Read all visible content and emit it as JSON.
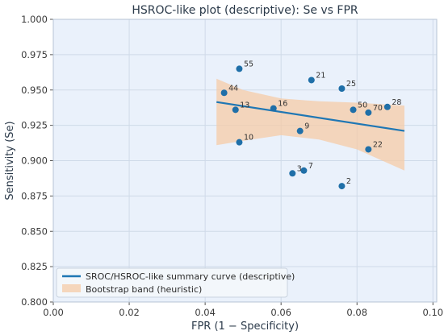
{
  "chart_data": {
    "type": "scatter",
    "title": "HSROC-like plot (descriptive): Se vs FPR",
    "xlabel": "FPR (1 − Specificity)",
    "ylabel": "Sensitivity (Se)",
    "xlim": [
      0.0,
      0.101
    ],
    "ylim": [
      0.8,
      1.0
    ],
    "xticks": [
      "0.00",
      "0.02",
      "0.04",
      "0.06",
      "0.08",
      "0.10"
    ],
    "yticks": [
      "0.800",
      "0.825",
      "0.850",
      "0.875",
      "0.900",
      "0.925",
      "0.950",
      "0.975",
      "1.000"
    ],
    "grid": true,
    "legend_position": "bottom-left",
    "colors": {
      "plot_background": "#eaf1fb",
      "grid": "#cfdae8",
      "points": "#1f6fa8",
      "curve": "#1f77b4",
      "band": "#f5cba7"
    },
    "points": [
      {
        "label": "55",
        "x": 0.049,
        "y": 0.965
      },
      {
        "label": "21",
        "x": 0.068,
        "y": 0.957
      },
      {
        "label": "25",
        "x": 0.076,
        "y": 0.951
      },
      {
        "label": "44",
        "x": 0.045,
        "y": 0.948
      },
      {
        "label": "13",
        "x": 0.048,
        "y": 0.936
      },
      {
        "label": "16",
        "x": 0.058,
        "y": 0.937
      },
      {
        "label": "50",
        "x": 0.079,
        "y": 0.936
      },
      {
        "label": "70",
        "x": 0.083,
        "y": 0.934
      },
      {
        "label": "28",
        "x": 0.088,
        "y": 0.938
      },
      {
        "label": "9",
        "x": 0.065,
        "y": 0.921
      },
      {
        "label": "10",
        "x": 0.049,
        "y": 0.913
      },
      {
        "label": "22",
        "x": 0.083,
        "y": 0.908
      },
      {
        "label": "3",
        "x": 0.063,
        "y": 0.891
      },
      {
        "label": "7",
        "x": 0.066,
        "y": 0.893
      },
      {
        "label": "2",
        "x": 0.076,
        "y": 0.882
      }
    ],
    "summary_curve": {
      "name": "SROC/HSROC-like summary curve (descriptive)",
      "x": [
        0.043,
        0.0925
      ],
      "y": [
        0.9415,
        0.921
      ]
    },
    "bootstrap_band": {
      "name": "Bootstrap band (heuristic)",
      "x": [
        0.043,
        0.05,
        0.06,
        0.07,
        0.08,
        0.0925
      ],
      "upper": [
        0.958,
        0.95,
        0.944,
        0.942,
        0.941,
        0.939
      ],
      "lower": [
        0.911,
        0.914,
        0.918,
        0.915,
        0.908,
        0.893
      ]
    }
  }
}
